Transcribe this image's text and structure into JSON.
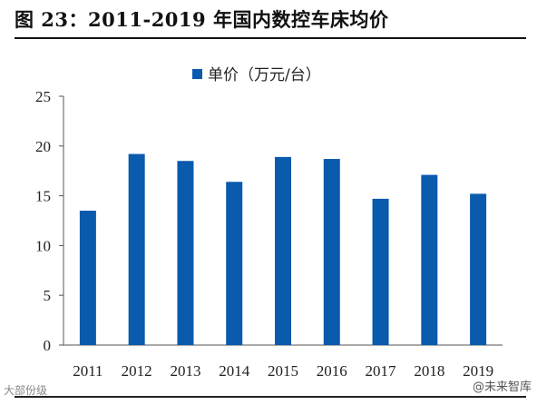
{
  "figure": {
    "title": "图 23：2011-2019 年国内数控车床均价"
  },
  "watermarks": {
    "left": "大部份级",
    "right": "@未来智库"
  },
  "colors": {
    "bar": "#0a5aad",
    "axis": "#555555"
  },
  "chart_data": {
    "type": "bar",
    "title": "",
    "xlabel": "",
    "ylabel": "",
    "categories": [
      "2011",
      "2012",
      "2013",
      "2014",
      "2015",
      "2016",
      "2017",
      "2018",
      "2019"
    ],
    "series": [
      {
        "name": "单价（万元/台）",
        "values": [
          13.5,
          19.2,
          18.5,
          16.4,
          18.9,
          18.7,
          14.7,
          17.1,
          15.2
        ]
      }
    ],
    "ylim": [
      0,
      25
    ],
    "yticks": [
      0,
      5,
      10,
      15,
      20,
      25
    ],
    "grid": false,
    "legend": "top-center"
  }
}
